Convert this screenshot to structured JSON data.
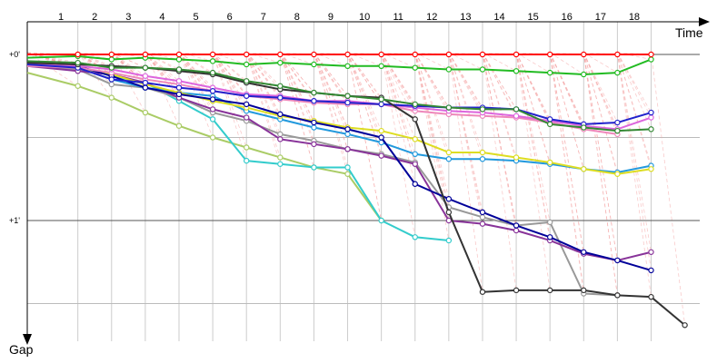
{
  "chart_data": {
    "type": "line",
    "x_axis_label": "Time",
    "y_axis_label": "Gap",
    "laps": [
      "1",
      "2",
      "3",
      "4",
      "5",
      "6",
      "7",
      "8",
      "9",
      "10",
      "11",
      "12",
      "13",
      "14",
      "15",
      "16",
      "17",
      "18"
    ],
    "y_ticks": [
      {
        "value": 0,
        "label": "+0'"
      },
      {
        "value": 1,
        "label": "+1'"
      }
    ],
    "ylim": [
      -0.02,
      1.72
    ],
    "xlim": [
      0,
      20.75
    ],
    "grid": true,
    "series": [
      {
        "color": "#ff0000",
        "points": [
          [
            0,
            0
          ],
          [
            1.5,
            0
          ],
          [
            2.5,
            0
          ],
          [
            3.5,
            0
          ],
          [
            4.5,
            0
          ],
          [
            5.5,
            0
          ],
          [
            6.5,
            0
          ],
          [
            7.5,
            0
          ],
          [
            8.5,
            0
          ],
          [
            9.5,
            0
          ],
          [
            10.5,
            0
          ],
          [
            11.5,
            0
          ],
          [
            12.5,
            0
          ],
          [
            13.5,
            0
          ],
          [
            14.5,
            0
          ],
          [
            15.5,
            0
          ],
          [
            16.5,
            0
          ],
          [
            17.5,
            0
          ],
          [
            18.5,
            0
          ]
        ]
      },
      {
        "color": "#22bb22",
        "points": [
          [
            0,
            0.02
          ],
          [
            1.5,
            0.01
          ],
          [
            2.5,
            0.03
          ],
          [
            3.5,
            0.02
          ],
          [
            4.5,
            0.03
          ],
          [
            5.5,
            0.04
          ],
          [
            6.5,
            0.06
          ],
          [
            7.5,
            0.05
          ],
          [
            8.5,
            0.06
          ],
          [
            9.5,
            0.07
          ],
          [
            10.5,
            0.07
          ],
          [
            11.5,
            0.08
          ],
          [
            12.5,
            0.09
          ],
          [
            13.5,
            0.09
          ],
          [
            14.5,
            0.1
          ],
          [
            15.5,
            0.11
          ],
          [
            16.5,
            0.12
          ],
          [
            17.5,
            0.11
          ],
          [
            18.5,
            0.03
          ]
        ]
      },
      {
        "color": "#338833",
        "points": [
          [
            0,
            0.04
          ],
          [
            1.5,
            0.05
          ],
          [
            2.5,
            0.08
          ],
          [
            3.5,
            0.08
          ],
          [
            4.5,
            0.09
          ],
          [
            5.5,
            0.11
          ],
          [
            6.5,
            0.16
          ],
          [
            7.5,
            0.19
          ],
          [
            8.5,
            0.23
          ],
          [
            9.5,
            0.25
          ],
          [
            10.5,
            0.27
          ],
          [
            11.5,
            0.3
          ],
          [
            12.5,
            0.32
          ],
          [
            13.5,
            0.33
          ],
          [
            14.5,
            0.33
          ],
          [
            15.5,
            0.42
          ],
          [
            16.5,
            0.44
          ],
          [
            17.5,
            0.46
          ],
          [
            18.5,
            0.45
          ]
        ]
      },
      {
        "color": "#333333",
        "points": [
          [
            0,
            0.05
          ],
          [
            1.5,
            0.06
          ],
          [
            2.5,
            0.07
          ],
          [
            3.5,
            0.08
          ],
          [
            4.5,
            0.1
          ],
          [
            5.5,
            0.12
          ],
          [
            6.5,
            0.17
          ],
          [
            7.5,
            0.21
          ],
          [
            8.5,
            0.23
          ],
          [
            9.5,
            0.25
          ],
          [
            10.5,
            0.26
          ],
          [
            11.5,
            0.39
          ],
          [
            12.5,
            0.95
          ],
          [
            13.5,
            1.43
          ],
          [
            14.5,
            1.42
          ],
          [
            15.5,
            1.42
          ],
          [
            16.5,
            1.42
          ],
          [
            17.5,
            1.45
          ],
          [
            18.5,
            1.46
          ],
          [
            19.5,
            1.63
          ]
        ]
      },
      {
        "color": "#2222cc",
        "points": [
          [
            0,
            0.06
          ],
          [
            1.5,
            0.08
          ],
          [
            2.5,
            0.15
          ],
          [
            3.5,
            0.17
          ],
          [
            4.5,
            0.2
          ],
          [
            5.5,
            0.22
          ],
          [
            6.5,
            0.25
          ],
          [
            7.5,
            0.26
          ],
          [
            8.5,
            0.28
          ],
          [
            9.5,
            0.29
          ],
          [
            10.5,
            0.3
          ],
          [
            11.5,
            0.31
          ],
          [
            12.5,
            0.32
          ],
          [
            13.5,
            0.32
          ],
          [
            14.5,
            0.33
          ],
          [
            15.5,
            0.39
          ],
          [
            16.5,
            0.42
          ],
          [
            17.5,
            0.41
          ],
          [
            18.5,
            0.35
          ]
        ]
      },
      {
        "color": "#dd66dd",
        "points": [
          [
            0,
            0.06
          ],
          [
            1.5,
            0.07
          ],
          [
            2.5,
            0.09
          ],
          [
            3.5,
            0.13
          ],
          [
            4.5,
            0.16
          ],
          [
            5.5,
            0.2
          ],
          [
            6.5,
            0.24
          ],
          [
            7.5,
            0.25
          ],
          [
            8.5,
            0.28
          ],
          [
            9.5,
            0.28
          ],
          [
            10.5,
            0.3
          ],
          [
            11.5,
            0.32
          ],
          [
            12.5,
            0.34
          ],
          [
            13.5,
            0.35
          ],
          [
            14.5,
            0.37
          ],
          [
            15.5,
            0.4
          ],
          [
            16.5,
            0.43
          ],
          [
            17.5,
            0.45
          ],
          [
            18.5,
            0.38
          ]
        ]
      },
      {
        "color": "#ee88bb",
        "points": [
          [
            0,
            0.07
          ],
          [
            1.5,
            0.08
          ],
          [
            2.5,
            0.11
          ],
          [
            3.5,
            0.15
          ],
          [
            4.5,
            0.18
          ],
          [
            5.5,
            0.22
          ],
          [
            6.5,
            0.25
          ],
          [
            7.5,
            0.27
          ],
          [
            8.5,
            0.29
          ],
          [
            9.5,
            0.3
          ],
          [
            10.5,
            0.3
          ],
          [
            11.5,
            0.34
          ],
          [
            12.5,
            0.36
          ],
          [
            13.5,
            0.37
          ],
          [
            14.5,
            0.38
          ],
          [
            15.5,
            0.41
          ],
          [
            16.5,
            0.45
          ],
          [
            17.5,
            0.48
          ]
        ]
      },
      {
        "color": "#000099",
        "points": [
          [
            0,
            0.04
          ],
          [
            1.5,
            0.07
          ],
          [
            2.5,
            0.13
          ],
          [
            3.5,
            0.2
          ],
          [
            4.5,
            0.24
          ],
          [
            5.5,
            0.27
          ],
          [
            6.5,
            0.3
          ],
          [
            7.5,
            0.36
          ],
          [
            8.5,
            0.41
          ],
          [
            9.5,
            0.45
          ],
          [
            10.5,
            0.5
          ],
          [
            11.5,
            0.78
          ],
          [
            12.5,
            0.87
          ],
          [
            13.5,
            0.95
          ],
          [
            14.5,
            1.03
          ],
          [
            15.5,
            1.1
          ],
          [
            16.5,
            1.19
          ],
          [
            17.5,
            1.24
          ],
          [
            18.5,
            1.3
          ]
        ]
      },
      {
        "color": "#dddd22",
        "points": [
          [
            0,
            0.05
          ],
          [
            1.5,
            0.08
          ],
          [
            2.5,
            0.12
          ],
          [
            3.5,
            0.18
          ],
          [
            4.5,
            0.23
          ],
          [
            5.5,
            0.28
          ],
          [
            6.5,
            0.32
          ],
          [
            7.5,
            0.37
          ],
          [
            8.5,
            0.4
          ],
          [
            9.5,
            0.44
          ],
          [
            10.5,
            0.46
          ],
          [
            11.5,
            0.51
          ],
          [
            12.5,
            0.59
          ],
          [
            13.5,
            0.59
          ],
          [
            14.5,
            0.62
          ],
          [
            15.5,
            0.65
          ],
          [
            16.5,
            0.69
          ],
          [
            17.5,
            0.72
          ],
          [
            18.5,
            0.69
          ]
        ]
      },
      {
        "color": "#2299dd",
        "points": [
          [
            0,
            0.06
          ],
          [
            1.5,
            0.08
          ],
          [
            2.5,
            0.15
          ],
          [
            3.5,
            0.2
          ],
          [
            4.5,
            0.23
          ],
          [
            5.5,
            0.25
          ],
          [
            6.5,
            0.34
          ],
          [
            7.5,
            0.39
          ],
          [
            8.5,
            0.44
          ],
          [
            9.5,
            0.48
          ],
          [
            10.5,
            0.53
          ],
          [
            11.5,
            0.6
          ],
          [
            12.5,
            0.63
          ],
          [
            13.5,
            0.63
          ],
          [
            14.5,
            0.64
          ],
          [
            15.5,
            0.66
          ],
          [
            16.5,
            0.69
          ],
          [
            17.5,
            0.71
          ],
          [
            18.5,
            0.67
          ]
        ]
      },
      {
        "color": "#883399",
        "points": [
          [
            0,
            0.07
          ],
          [
            1.5,
            0.1
          ],
          [
            2.5,
            0.12
          ],
          [
            3.5,
            0.17
          ],
          [
            4.5,
            0.26
          ],
          [
            5.5,
            0.33
          ],
          [
            6.5,
            0.38
          ],
          [
            7.5,
            0.51
          ],
          [
            8.5,
            0.54
          ],
          [
            9.5,
            0.57
          ],
          [
            10.5,
            0.61
          ],
          [
            11.5,
            0.66
          ],
          [
            12.5,
            1.0
          ],
          [
            13.5,
            1.02
          ],
          [
            14.5,
            1.06
          ],
          [
            15.5,
            1.12
          ],
          [
            16.5,
            1.2
          ],
          [
            17.5,
            1.24
          ],
          [
            18.5,
            1.19
          ]
        ]
      },
      {
        "color": "#999999",
        "points": [
          [
            0,
            0.07
          ],
          [
            1.5,
            0.09
          ],
          [
            2.5,
            0.18
          ],
          [
            3.5,
            0.2
          ],
          [
            4.5,
            0.26
          ],
          [
            5.5,
            0.35
          ],
          [
            6.5,
            0.4
          ],
          [
            7.5,
            0.48
          ],
          [
            8.5,
            0.52
          ],
          [
            9.5,
            0.57
          ],
          [
            10.5,
            0.6
          ],
          [
            11.5,
            0.65
          ],
          [
            12.5,
            0.92
          ],
          [
            13.5,
            0.98
          ],
          [
            14.5,
            1.03
          ],
          [
            15.5,
            1.01
          ],
          [
            16.5,
            1.44
          ],
          [
            17.5,
            1.45
          ]
        ]
      },
      {
        "color": "#33cccc",
        "points": [
          [
            0,
            0.05
          ],
          [
            1.5,
            0.07
          ],
          [
            2.5,
            0.13
          ],
          [
            3.5,
            0.17
          ],
          [
            4.5,
            0.28
          ],
          [
            5.5,
            0.39
          ],
          [
            6.5,
            0.64
          ],
          [
            7.5,
            0.66
          ],
          [
            8.5,
            0.68
          ],
          [
            9.5,
            0.68
          ],
          [
            10.5,
            1.0
          ],
          [
            11.5,
            1.1
          ],
          [
            12.5,
            1.12
          ]
        ]
      },
      {
        "color": "#aacc66",
        "points": [
          [
            0,
            0.11
          ],
          [
            1.5,
            0.19
          ],
          [
            2.5,
            0.26
          ],
          [
            3.5,
            0.35
          ],
          [
            4.5,
            0.43
          ],
          [
            5.5,
            0.5
          ],
          [
            6.5,
            0.56
          ],
          [
            7.5,
            0.62
          ],
          [
            8.5,
            0.68
          ],
          [
            9.5,
            0.72
          ],
          [
            10.5,
            1.0
          ]
        ]
      }
    ]
  }
}
